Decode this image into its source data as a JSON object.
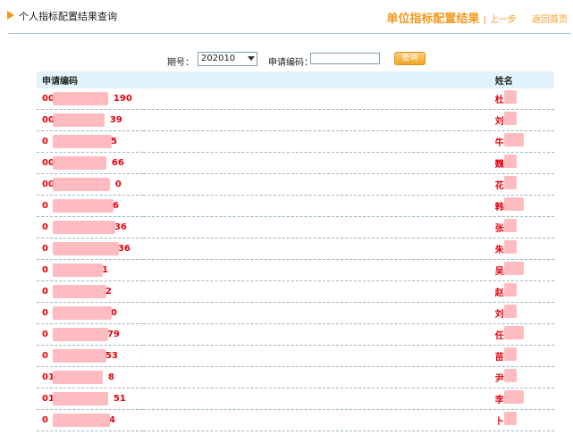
{
  "header": {
    "title": "个人指标配置结果查询",
    "main_link": "单位指标配置结果",
    "prev_link": "上一步",
    "home_link": "返回首页"
  },
  "search": {
    "period_label": "期号：",
    "period_value": "202010",
    "code_label": "申请编码：",
    "code_value": "",
    "query_label": "查询"
  },
  "table": {
    "headers": [
      "申请编码",
      "姓名"
    ],
    "rows": [
      {
        "code_prefix": "00",
        "code_suffix": "190",
        "name": "杜"
      },
      {
        "code_prefix": "00",
        "code_suffix": "39",
        "name": "刘"
      },
      {
        "code_prefix": "0",
        "code_suffix": "5",
        "name": "牛"
      },
      {
        "code_prefix": "00",
        "code_suffix": "66",
        "name": "魏"
      },
      {
        "code_prefix": "00",
        "code_suffix": "0",
        "name": "花"
      },
      {
        "code_prefix": "0",
        "code_suffix": "6",
        "name": "韩"
      },
      {
        "code_prefix": "0",
        "code_suffix": "36",
        "name": "张"
      },
      {
        "code_prefix": "0",
        "code_suffix": "36",
        "name": "朱"
      },
      {
        "code_prefix": "0",
        "code_suffix": "1",
        "name": "吴"
      },
      {
        "code_prefix": "0",
        "code_suffix": "2",
        "name": "赵"
      },
      {
        "code_prefix": "0",
        "code_suffix": "0",
        "name": "刘"
      },
      {
        "code_prefix": "0",
        "code_suffix": "79",
        "name": "任"
      },
      {
        "code_prefix": "0",
        "code_suffix": "53",
        "name": "苗"
      },
      {
        "code_prefix": "01",
        "code_suffix": "8",
        "name": "尹"
      },
      {
        "code_prefix": "01",
        "code_suffix": "51",
        "name": "李"
      },
      {
        "code_prefix": "0",
        "code_suffix": "4",
        "name": "卜"
      }
    ]
  }
}
